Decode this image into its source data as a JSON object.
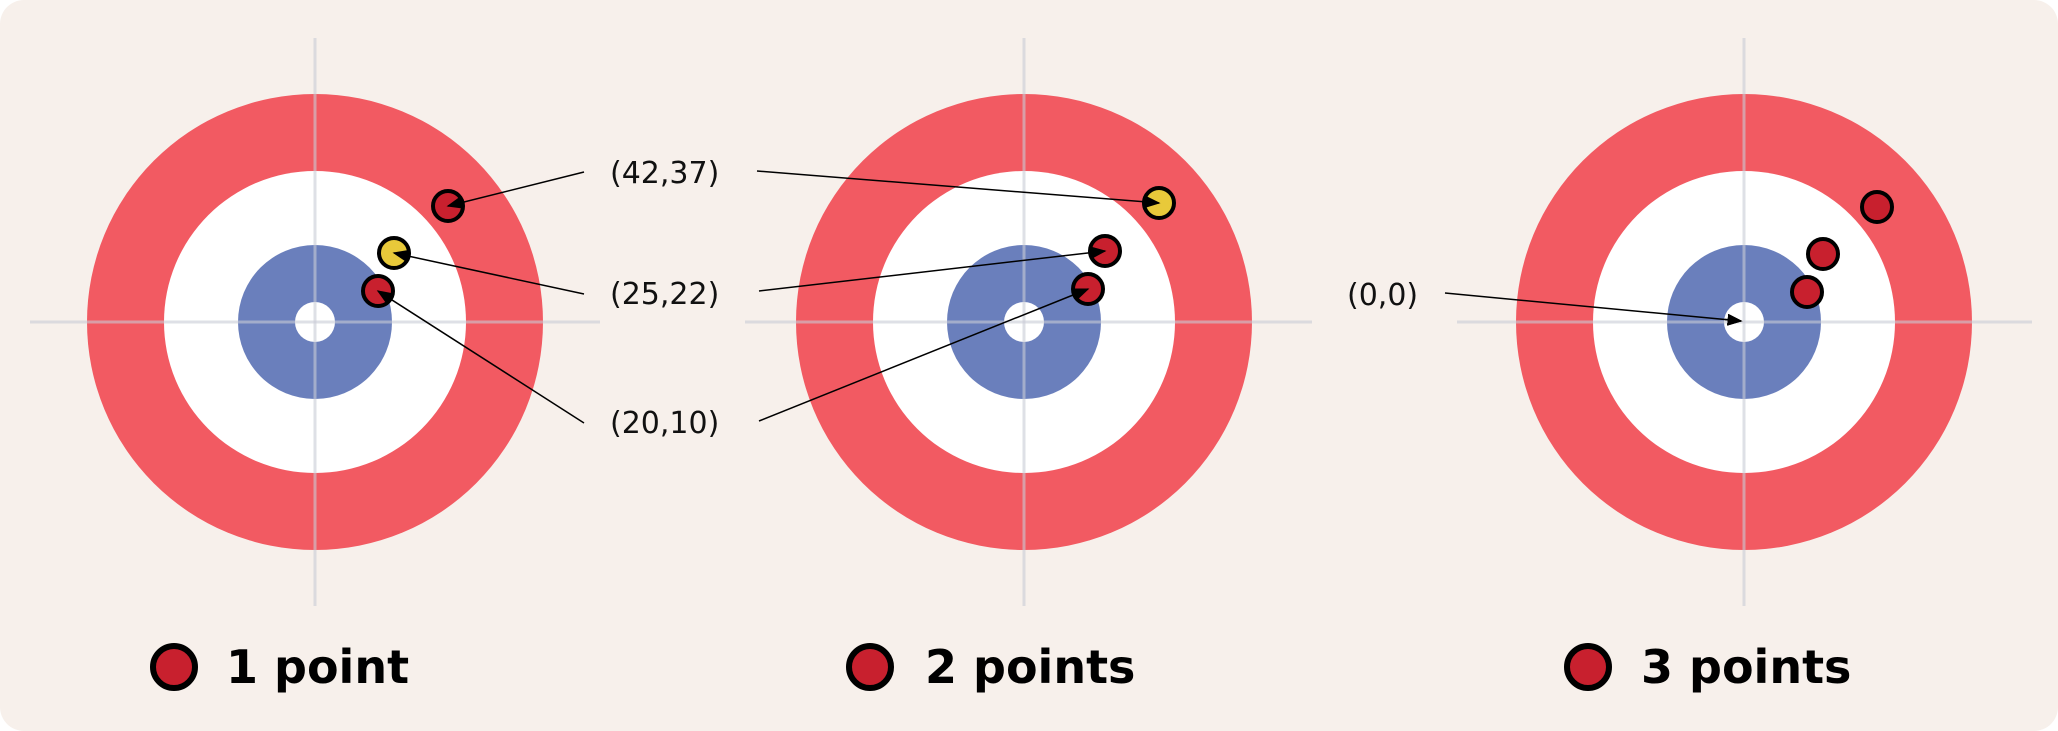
{
  "colors": {
    "background": "#f7f0eb",
    "outer_ring": "#f25a62",
    "middle_ring": "#ffffff",
    "inner_ring": "#6a7fbc",
    "button": "#ffffff",
    "stone_red": "#c8202e",
    "stone_yellow": "#e8c93a",
    "crosshair": "#c9ccd6"
  },
  "labels": {
    "coord_1": "(42,37)",
    "coord_2": "(25,22)",
    "coord_3": "(20,10)",
    "origin": "(0,0)"
  },
  "legend": [
    {
      "label": "1 point",
      "stone_color": "red"
    },
    {
      "label": "2 points",
      "stone_color": "red"
    },
    {
      "label": "3 points",
      "stone_color": "red"
    }
  ]
}
